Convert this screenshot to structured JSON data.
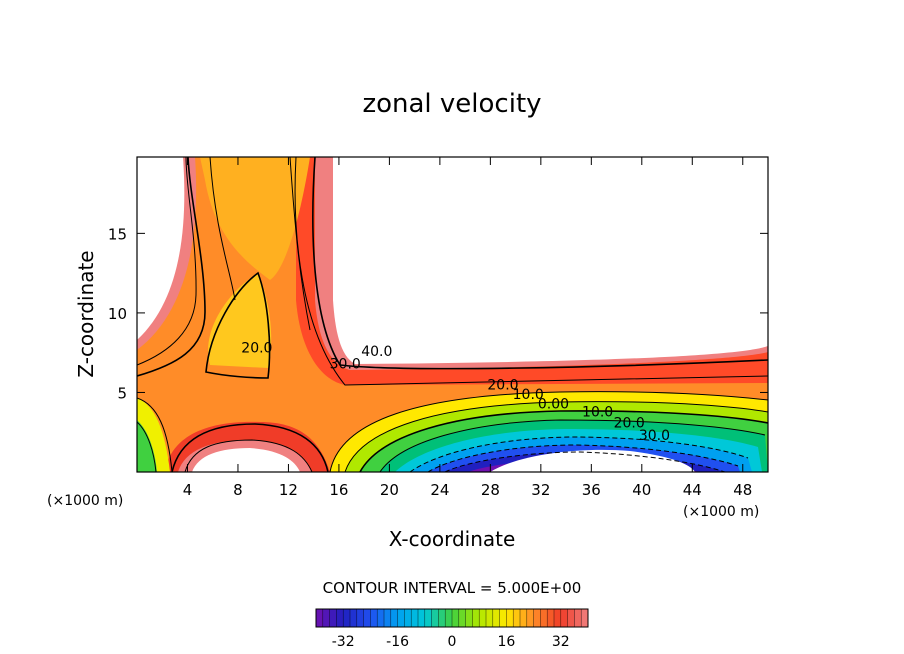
{
  "chart_data": {
    "type": "heatmap",
    "title": "zonal velocity",
    "xlabel": "X-coordinate",
    "ylabel": "Z-coordinate",
    "x_unit_label_left": "(×1000 m)",
    "x_unit_label_right": "(×1000 m)",
    "xlim": [
      0,
      50
    ],
    "ylim": [
      0,
      19.8
    ],
    "x_ticks": [
      4,
      8,
      12,
      16,
      20,
      24,
      28,
      32,
      36,
      40,
      44,
      48
    ],
    "y_ticks": [
      5,
      10,
      15
    ],
    "contour_interval_text": "CONTOUR INTERVAL = 5.000E+00",
    "contour_labels": [
      {
        "text": "20.0",
        "x": 9.5,
        "z": 7.5
      },
      {
        "text": "30.0",
        "x": 16.5,
        "z": 6.5
      },
      {
        "text": "40.0",
        "x": 19.0,
        "z": 7.3
      },
      {
        "text": "20.0",
        "x": 29.0,
        "z": 5.2
      },
      {
        "text": "10.0",
        "x": 31.0,
        "z": 4.6
      },
      {
        "text": "0.00",
        "x": 33.0,
        "z": 4.0
      },
      {
        "text": "10.0",
        "x": 36.5,
        "z": 3.5
      },
      {
        "text": "20.0",
        "x": 39.0,
        "z": 2.8
      },
      {
        "text": "30.0",
        "x": 41.0,
        "z": 2.0
      }
    ],
    "colorbar": {
      "range": [
        -40,
        40
      ],
      "ticks": [
        "-32",
        "-16",
        "0",
        "16",
        "32"
      ],
      "tick_values": [
        -32,
        -16,
        0,
        16,
        32
      ]
    },
    "grid": false,
    "legend": "none"
  }
}
